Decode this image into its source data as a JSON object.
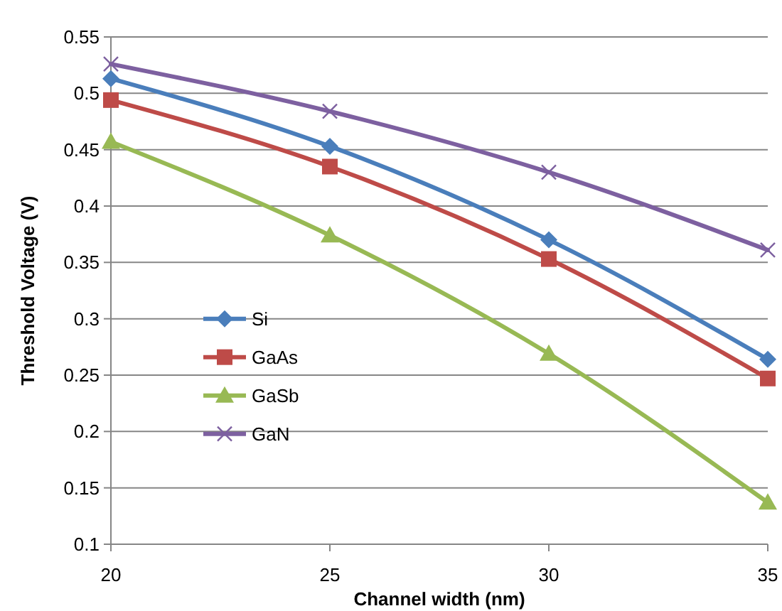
{
  "chart_data": {
    "type": "line",
    "xlabel": "Channel width (nm)",
    "ylabel": "Threshold Voltage (V)",
    "x": [
      20,
      25,
      30,
      35
    ],
    "xlim": [
      20,
      35
    ],
    "xticks": [
      20,
      25,
      30,
      35
    ],
    "ylim": [
      0.1,
      0.55
    ],
    "yticks": [
      0.1,
      0.15,
      0.2,
      0.25,
      0.3,
      0.35,
      0.4,
      0.45,
      0.5,
      0.55
    ],
    "grid": "y",
    "legend": "left",
    "line_style": "solid",
    "series": [
      {
        "name": "Si",
        "color": "#4a7ebb",
        "marker": "diamond",
        "values": [
          0.513,
          0.453,
          0.37,
          0.264
        ]
      },
      {
        "name": "GaAs",
        "color": "#be4b48",
        "marker": "square",
        "values": [
          0.494,
          0.435,
          0.353,
          0.247
        ]
      },
      {
        "name": "GaSb",
        "color": "#98b954",
        "marker": "triangle",
        "values": [
          0.457,
          0.374,
          0.269,
          0.137
        ]
      },
      {
        "name": "GaN",
        "color": "#7d60a0",
        "marker": "cross",
        "values": [
          0.526,
          0.484,
          0.43,
          0.361
        ]
      }
    ]
  }
}
